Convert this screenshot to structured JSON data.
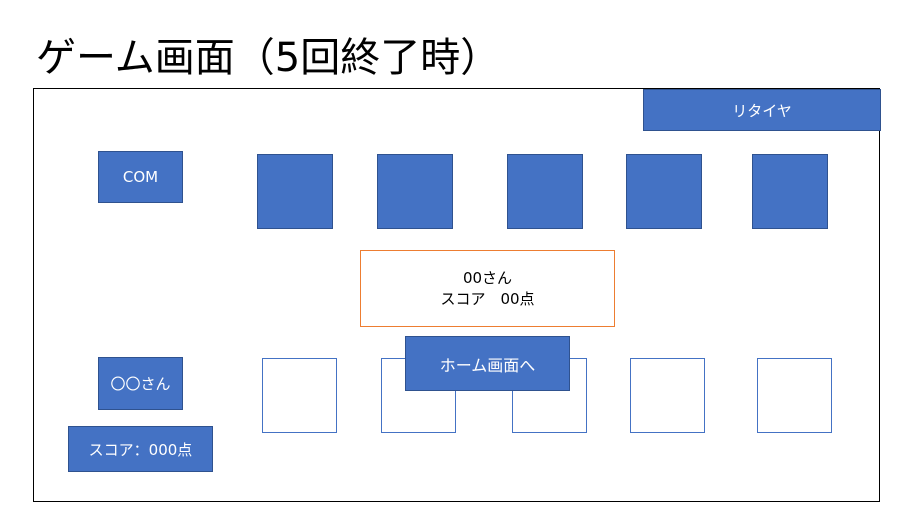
{
  "title": "ゲーム画面（5回終了時）",
  "retire_button": "リタイヤ",
  "com_label": "COM",
  "player_label": "〇〇さん",
  "player_score": "スコア：000点",
  "result": {
    "line1": "00さん",
    "line2": "スコア　00点"
  },
  "home_button": "ホーム画面へ",
  "colors": {
    "card_blue": "#4472c4",
    "result_border": "#ed7d31"
  }
}
